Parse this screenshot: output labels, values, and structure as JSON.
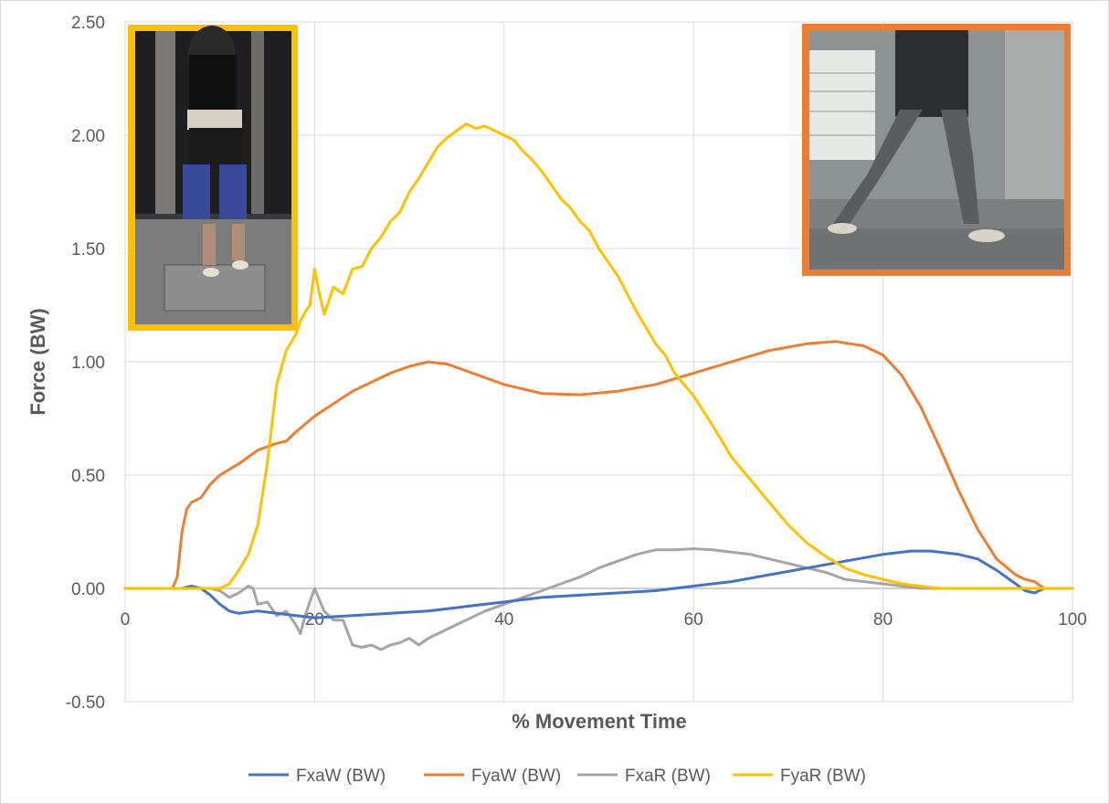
{
  "chart_data": {
    "type": "line",
    "xlabel": "% Movement Time",
    "ylabel": "Force (BW)",
    "xlim": [
      0,
      100
    ],
    "ylim": [
      -0.5,
      2.5
    ],
    "x_ticks": [
      "0",
      "20",
      "40",
      "60",
      "80",
      "100"
    ],
    "y_ticks": [
      "-0.50",
      "0.00",
      "0.50",
      "1.00",
      "1.50",
      "2.00",
      "2.50"
    ],
    "grid": true,
    "legend_position": "bottom",
    "series": [
      {
        "name": "FxaW (BW)",
        "color": "#4472c4",
        "x": [
          0,
          5,
          6,
          7,
          8,
          9,
          10,
          11,
          12,
          14,
          16,
          18,
          20,
          24,
          28,
          32,
          36,
          40,
          44,
          48,
          52,
          56,
          60,
          64,
          68,
          72,
          76,
          80,
          83,
          85,
          88,
          90,
          92,
          94,
          95,
          96,
          97,
          100
        ],
        "y": [
          0,
          0,
          0,
          0.01,
          0.0,
          -0.03,
          -0.07,
          -0.1,
          -0.11,
          -0.1,
          -0.11,
          -0.12,
          -0.13,
          -0.12,
          -0.11,
          -0.1,
          -0.08,
          -0.06,
          -0.04,
          -0.03,
          -0.02,
          -0.01,
          0.01,
          0.03,
          0.06,
          0.09,
          0.12,
          0.15,
          0.165,
          0.165,
          0.15,
          0.13,
          0.08,
          0.02,
          -0.01,
          -0.02,
          0,
          0
        ]
      },
      {
        "name": "FyaW (BW)",
        "color": "#ed7d31",
        "x": [
          0,
          5,
          5.5,
          6,
          6.5,
          7,
          8,
          9,
          10,
          12,
          14,
          16,
          17,
          18,
          20,
          24,
          28,
          30,
          32,
          34,
          36,
          40,
          44,
          48,
          52,
          56,
          60,
          64,
          68,
          72,
          75,
          78,
          80,
          82,
          84,
          86,
          88,
          90,
          92,
          94,
          95,
          96,
          97,
          100
        ],
        "y": [
          0,
          0,
          0.05,
          0.25,
          0.35,
          0.38,
          0.4,
          0.46,
          0.5,
          0.55,
          0.61,
          0.64,
          0.65,
          0.69,
          0.76,
          0.87,
          0.95,
          0.98,
          1.0,
          0.99,
          0.96,
          0.9,
          0.86,
          0.855,
          0.87,
          0.9,
          0.95,
          1.0,
          1.05,
          1.08,
          1.09,
          1.07,
          1.03,
          0.94,
          0.8,
          0.62,
          0.43,
          0.26,
          0.13,
          0.06,
          0.04,
          0.03,
          0,
          0
        ]
      },
      {
        "name": "FxaR (BW)",
        "color": "#a5a5a5",
        "x": [
          0,
          9,
          10,
          11,
          12,
          13,
          13.5,
          14,
          15,
          16,
          17,
          18,
          18.5,
          19,
          20,
          21,
          22,
          23,
          24,
          25,
          26,
          27,
          28,
          29,
          30,
          31,
          32,
          34,
          36,
          38,
          40,
          42,
          44,
          46,
          48,
          50,
          52,
          54,
          56,
          58,
          60,
          62,
          64,
          66,
          68,
          70,
          72,
          74,
          76,
          78,
          80,
          82,
          84,
          86,
          88,
          90,
          92,
          100
        ],
        "y": [
          0,
          0,
          -0.01,
          -0.04,
          -0.02,
          0.01,
          0.0,
          -0.07,
          -0.06,
          -0.12,
          -0.1,
          -0.16,
          -0.2,
          -0.12,
          0.0,
          -0.1,
          -0.14,
          -0.14,
          -0.25,
          -0.26,
          -0.25,
          -0.27,
          -0.25,
          -0.24,
          -0.22,
          -0.25,
          -0.22,
          -0.18,
          -0.14,
          -0.1,
          -0.07,
          -0.04,
          -0.01,
          0.02,
          0.05,
          0.09,
          0.12,
          0.15,
          0.17,
          0.17,
          0.175,
          0.17,
          0.16,
          0.15,
          0.13,
          0.11,
          0.09,
          0.07,
          0.04,
          0.03,
          0.02,
          0.01,
          0.0,
          0.0,
          0.0,
          0.0,
          0.0,
          0
        ]
      },
      {
        "name": "FyaR (BW)",
        "color": "#ffc000",
        "x": [
          0,
          10,
          11,
          12,
          13,
          14,
          15,
          16,
          17,
          18,
          18.5,
          19,
          19.5,
          20,
          20.5,
          21,
          22,
          23,
          24,
          25,
          26,
          27,
          28,
          29,
          30,
          31,
          32,
          33,
          34,
          35,
          36,
          37,
          38,
          39,
          40,
          41,
          42,
          43,
          44,
          45,
          46,
          47,
          48,
          49,
          50,
          52,
          54,
          56,
          57,
          58,
          60,
          62,
          64,
          66,
          68,
          70,
          72,
          74,
          76,
          78,
          80,
          82,
          84,
          86,
          88,
          90,
          92,
          100
        ],
        "y": [
          0,
          0,
          0.02,
          0.08,
          0.15,
          0.28,
          0.55,
          0.9,
          1.05,
          1.12,
          1.18,
          1.22,
          1.25,
          1.41,
          1.3,
          1.21,
          1.33,
          1.3,
          1.41,
          1.42,
          1.5,
          1.55,
          1.62,
          1.66,
          1.75,
          1.81,
          1.88,
          1.95,
          1.99,
          2.02,
          2.05,
          2.03,
          2.04,
          2.02,
          2.0,
          1.98,
          1.93,
          1.89,
          1.84,
          1.78,
          1.72,
          1.68,
          1.62,
          1.58,
          1.5,
          1.38,
          1.22,
          1.08,
          1.03,
          0.95,
          0.85,
          0.72,
          0.58,
          0.48,
          0.38,
          0.28,
          0.2,
          0.14,
          0.09,
          0.06,
          0.04,
          0.02,
          0.01,
          0.0,
          0.0,
          0.0,
          0.0,
          0
        ]
      }
    ]
  }
}
